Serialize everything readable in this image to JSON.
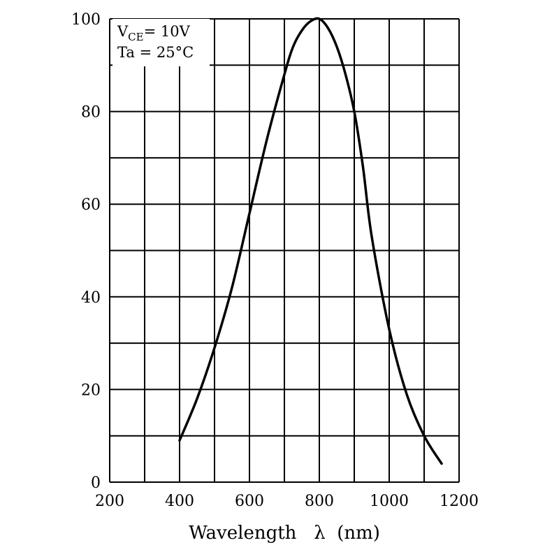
{
  "chart_data": {
    "type": "line",
    "title": "",
    "xlabel": "Wavelength   λ  (nm)",
    "ylabel": "",
    "xlim": [
      200,
      1200
    ],
    "ylim": [
      0,
      100
    ],
    "x_ticks": [
      200,
      400,
      600,
      800,
      1000,
      1200
    ],
    "y_ticks": [
      0,
      20,
      40,
      60,
      80,
      100
    ],
    "x_grid_step": 100,
    "y_grid_step": 10,
    "grid": true,
    "annotations": {
      "line1_main": "V",
      "line1_sub": "CE",
      "line1_rest": "= 10V",
      "line2": "Ta = 25°C"
    },
    "series": [
      {
        "x": [
          400,
          450,
          500,
          550,
          600,
          650,
          700,
          725,
          750,
          775,
          800,
          825,
          850,
          875,
          900,
          925,
          950,
          1000,
          1050,
          1100,
          1150
        ],
        "y": [
          9,
          18,
          29,
          42,
          58,
          74,
          88,
          94,
          97.5,
          99.5,
          100,
          98,
          94,
          88,
          80,
          68,
          53,
          33,
          19,
          10,
          4
        ]
      }
    ],
    "colors": {
      "line": "#000000",
      "grid": "#000000"
    }
  }
}
